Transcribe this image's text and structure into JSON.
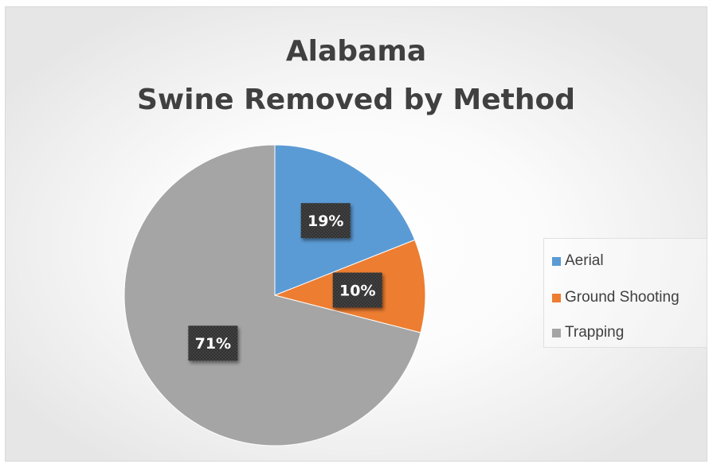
{
  "chart_data": {
    "type": "pie",
    "title_lines": [
      "Alabama",
      "Swine Removed by Method"
    ],
    "categories": [
      "Aerial",
      "Ground Shooting",
      "Trapping"
    ],
    "values": [
      19,
      10,
      71
    ],
    "labels": [
      "19%",
      "10%",
      "71%"
    ],
    "colors": [
      "#5b9bd5",
      "#ed7d31",
      "#a5a5a5"
    ],
    "legend": "right"
  }
}
